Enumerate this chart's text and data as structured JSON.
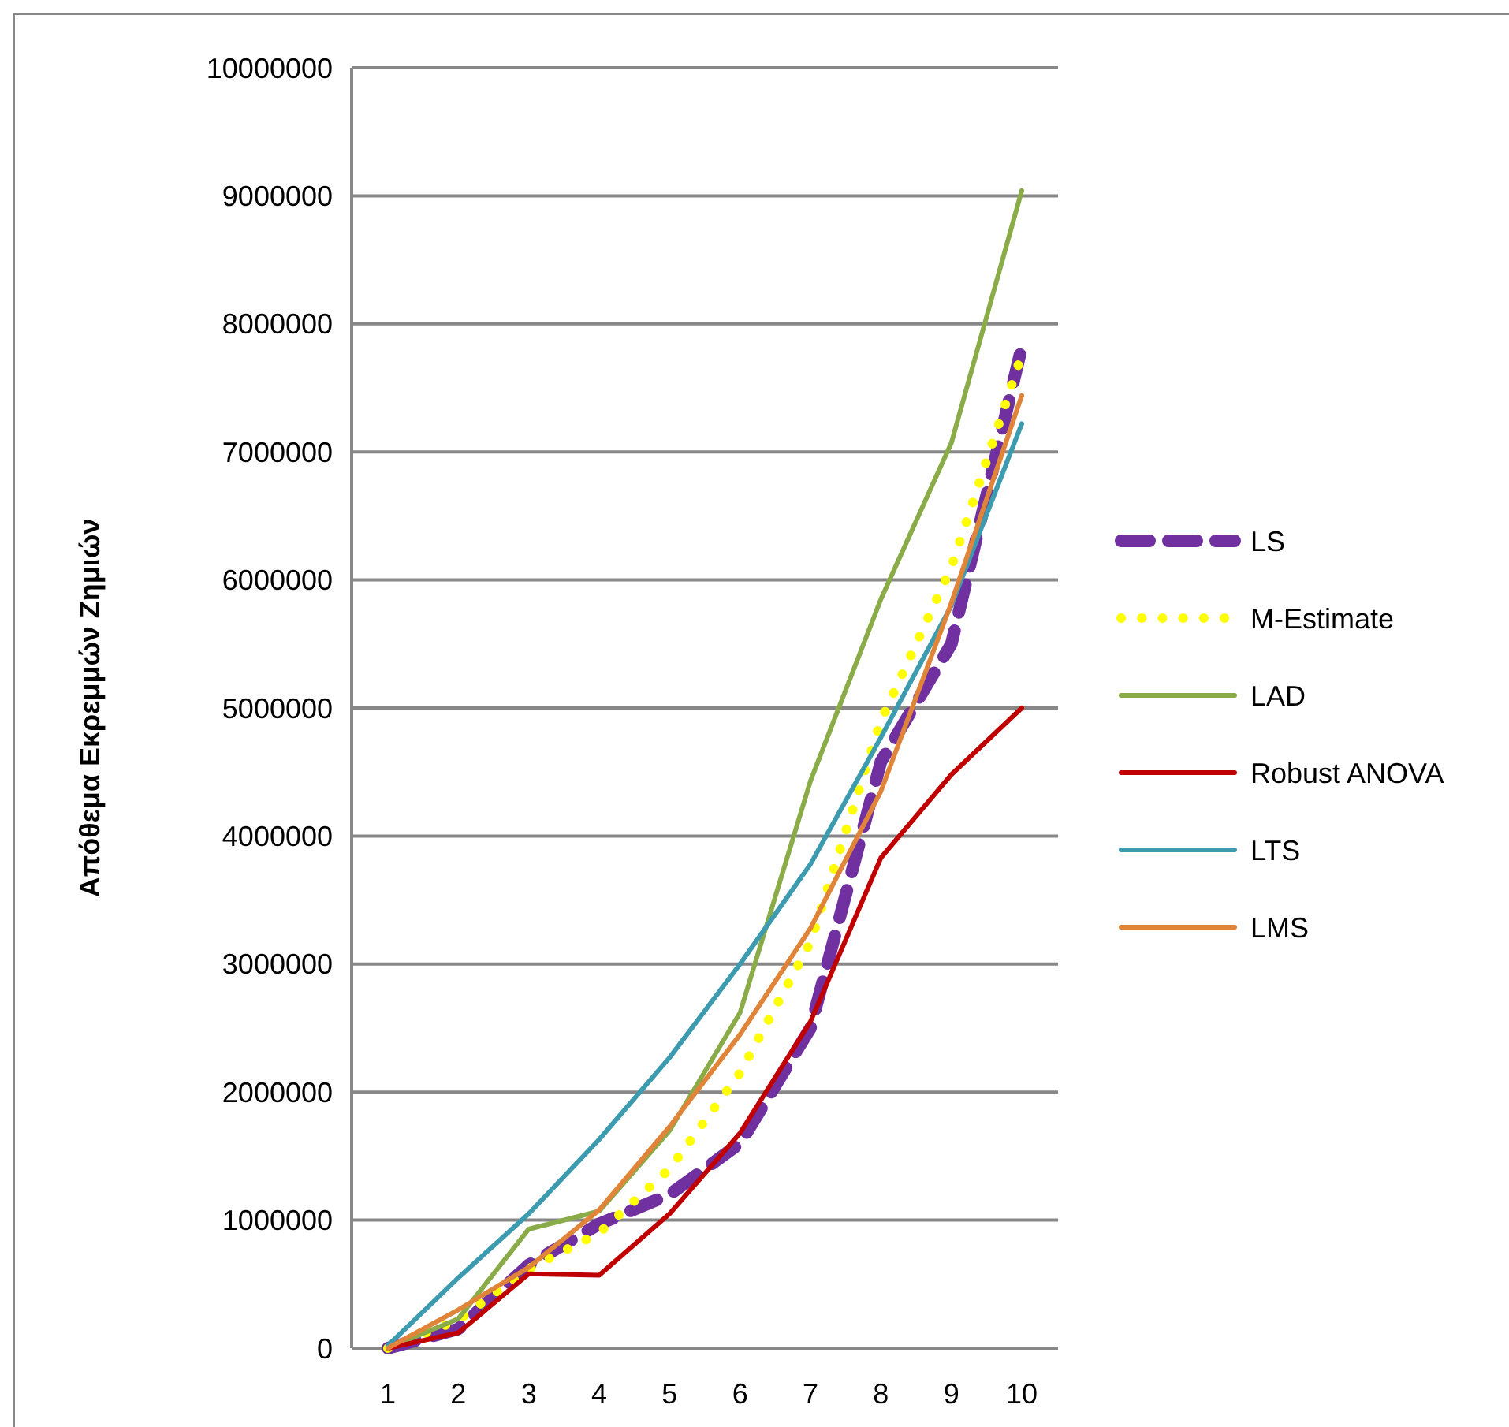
{
  "chart_data": {
    "type": "line",
    "ylabel": "Απόθεμα Εκρεμμών Ζημιών",
    "categories": [
      "1",
      "2",
      "3",
      "4",
      "5",
      "6",
      "7",
      "8",
      "9",
      "10"
    ],
    "ylim": [
      0,
      10000000
    ],
    "yticks": [
      0,
      1000000,
      2000000,
      3000000,
      4000000,
      5000000,
      6000000,
      7000000,
      8000000,
      9000000,
      10000000
    ],
    "grid": "y",
    "legend": "right",
    "marker": "none",
    "series": [
      {
        "name": "LS",
        "color": "#7030a0",
        "line_style": "dashed",
        "values": [
          0,
          150000,
          650000,
          970000,
          1200000,
          1600000,
          2500000,
          4580000,
          5500000,
          7820000
        ]
      },
      {
        "name": "M-Estimate",
        "color": "#ffff00",
        "line_style": "dotted",
        "values": [
          0,
          220000,
          620000,
          900000,
          1400000,
          2150000,
          3170000,
          4900000,
          6100000,
          7760000
        ]
      },
      {
        "name": "LAD",
        "color": "#8aac48",
        "line_style": "solid",
        "values": [
          0,
          230000,
          930000,
          1070000,
          1700000,
          2620000,
          4430000,
          5850000,
          7070000,
          9040000
        ]
      },
      {
        "name": "Robust ANOVA",
        "color": "#c00000",
        "line_style": "solid",
        "values": [
          0,
          120000,
          580000,
          570000,
          1050000,
          1680000,
          2550000,
          3830000,
          4480000,
          5000000
        ]
      },
      {
        "name": "LTS",
        "color": "#3d9bb0",
        "line_style": "solid",
        "values": [
          20000,
          550000,
          1050000,
          1630000,
          2270000,
          3000000,
          3780000,
          4770000,
          5800000,
          7220000
        ]
      },
      {
        "name": "LMS",
        "color": "#e0843a",
        "line_style": "solid",
        "values": [
          0,
          300000,
          630000,
          1080000,
          1730000,
          2450000,
          3280000,
          4350000,
          5820000,
          7440000
        ]
      }
    ]
  }
}
